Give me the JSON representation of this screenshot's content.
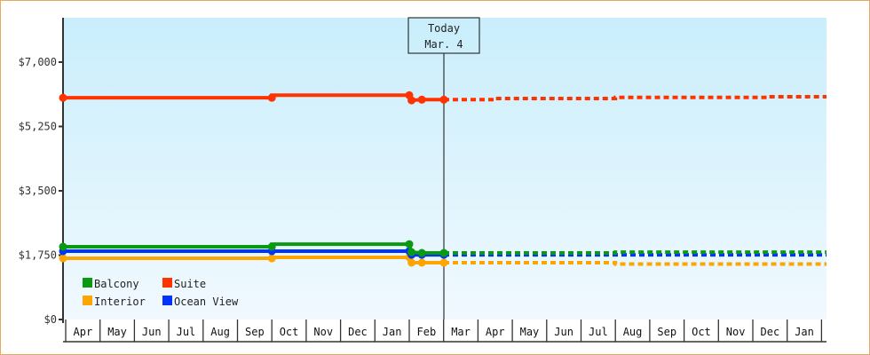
{
  "chart_data": {
    "type": "line",
    "title": "",
    "xlabel": "",
    "ylabel": "",
    "ylim": [
      0,
      8200
    ],
    "y_ticks": [
      {
        "value": 0,
        "label": "$0"
      },
      {
        "value": 1750,
        "label": "$1,750"
      },
      {
        "value": 3500,
        "label": "$3,500"
      },
      {
        "value": 5250,
        "label": "$5,250"
      },
      {
        "value": 7000,
        "label": "$7,000"
      }
    ],
    "x_months": [
      "Apr",
      "May",
      "Jun",
      "Jul",
      "Aug",
      "Sep",
      "Oct",
      "Nov",
      "Dec",
      "Jan",
      "Feb",
      "Mar",
      "Apr",
      "May",
      "Jun",
      "Jul",
      "Aug",
      "Sep",
      "Oct",
      "Nov",
      "Dec",
      "Jan"
    ],
    "today_marker": {
      "line1": "Today",
      "line2": "Mar. 4"
    },
    "grid": false,
    "legend_position": "bottom-left inside",
    "series": [
      {
        "name": "Balcony",
        "color": "#0a9a12",
        "historical": [
          [
            "Apr 1",
            1980
          ],
          [
            "Oct 1",
            1980
          ],
          [
            "Oct 1",
            2050
          ],
          [
            "Feb 1",
            2050
          ],
          [
            "Feb 3",
            1830
          ],
          [
            "Feb 12",
            1810
          ],
          [
            "Mar 4",
            1810
          ]
        ],
        "forecast": [
          [
            "Mar 4",
            1810
          ],
          [
            "Aug 1",
            1810
          ],
          [
            "Aug 1",
            1830
          ],
          [
            "Jan 31",
            1830
          ]
        ]
      },
      {
        "name": "Suite",
        "color": "#ff3300",
        "historical": [
          [
            "Apr 1",
            6030
          ],
          [
            "Oct 1",
            6030
          ],
          [
            "Oct 1",
            6100
          ],
          [
            "Feb 1",
            6100
          ],
          [
            "Feb 3",
            5960
          ],
          [
            "Feb 12",
            5980
          ],
          [
            "Mar 4",
            5980
          ]
        ],
        "forecast": [
          [
            "Mar 4",
            5980
          ],
          [
            "Apr 15",
            5980
          ],
          [
            "Apr 15",
            6010
          ],
          [
            "Aug 1",
            6010
          ],
          [
            "Aug 1",
            6040
          ],
          [
            "Dec 15",
            6040
          ],
          [
            "Dec 15",
            6060
          ],
          [
            "Jan 31",
            6060
          ]
        ]
      },
      {
        "name": "Interior",
        "color": "#ffa500",
        "historical": [
          [
            "Apr 1",
            1665
          ],
          [
            "Oct 1",
            1665
          ],
          [
            "Oct 1",
            1690
          ],
          [
            "Feb 1",
            1690
          ],
          [
            "Feb 3",
            1545
          ],
          [
            "Feb 12",
            1545
          ],
          [
            "Mar 4",
            1545
          ]
        ],
        "forecast": [
          [
            "Mar 4",
            1545
          ],
          [
            "Aug 1",
            1545
          ],
          [
            "Aug 1",
            1510
          ],
          [
            "Jan 31",
            1510
          ]
        ]
      },
      {
        "name": "Ocean View",
        "color": "#0033ff",
        "historical": [
          [
            "Apr 1",
            1860
          ],
          [
            "Oct 1",
            1860
          ],
          [
            "Oct 1",
            1860
          ],
          [
            "Feb 1",
            1860
          ],
          [
            "Feb 3",
            1760
          ],
          [
            "Feb 12",
            1760
          ],
          [
            "Mar 4",
            1760
          ]
        ],
        "forecast": [
          [
            "Mar 4",
            1760
          ],
          [
            "Aug 1",
            1760
          ],
          [
            "Aug 1",
            1760
          ],
          [
            "Jan 31",
            1760
          ]
        ]
      }
    ]
  },
  "legend": [
    {
      "label": "Balcony",
      "color": "#0a9a12"
    },
    {
      "label": "Suite",
      "color": "#ff3300"
    },
    {
      "label": "Interior",
      "color": "#ffa500"
    },
    {
      "label": "Ocean View",
      "color": "#0033ff"
    }
  ],
  "colors": {
    "frame_border": "#e8a860",
    "plot_top": "#c8eefb",
    "plot_bottom": "#f2faff",
    "axis": "#333333"
  }
}
